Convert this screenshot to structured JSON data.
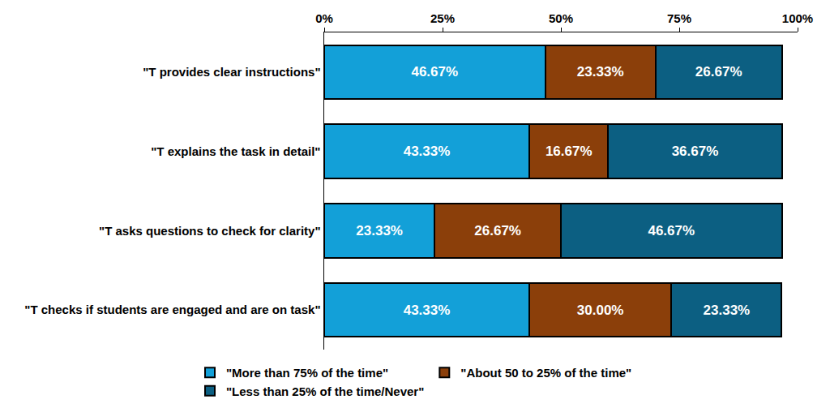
{
  "chart_data": {
    "type": "bar",
    "orientation": "horizontal",
    "stacked": true,
    "data_labels": true,
    "grid": false,
    "legend": "bottom",
    "categories": [
      "\"T provides clear instructions\"",
      "\"T explains the task in detail\"",
      "\"T asks questions to check for clarity\"",
      "\"T checks if students are engaged and are on task\""
    ],
    "xlim": [
      0,
      100
    ],
    "xticks": [
      {
        "value": 0,
        "label": "0%"
      },
      {
        "value": 25,
        "label": "25%"
      },
      {
        "value": 50,
        "label": "50%"
      },
      {
        "value": 75,
        "label": "75%"
      },
      {
        "value": 100,
        "label": "100%"
      }
    ],
    "series": [
      {
        "name": "\"More than 75% of the time\"",
        "color": "#13a0d8",
        "values": [
          46.67,
          43.33,
          23.33,
          43.33
        ],
        "value_labels": [
          "46.67%",
          "43.33%",
          "23.33%",
          "43.33%"
        ]
      },
      {
        "name": "\"About 50 to 25% of the time\"",
        "color": "#8b3f0a",
        "values": [
          23.33,
          16.67,
          26.67,
          30.0
        ],
        "value_labels": [
          "23.33%",
          "16.67%",
          "26.67%",
          "30.00%"
        ]
      },
      {
        "name": "\"Less than 25% of the time/Never\"",
        "color": "#0c5f82",
        "values": [
          26.67,
          36.67,
          46.67,
          23.33
        ],
        "value_labels": [
          "26.67%",
          "36.67%",
          "46.67%",
          "23.33%"
        ]
      }
    ]
  }
}
